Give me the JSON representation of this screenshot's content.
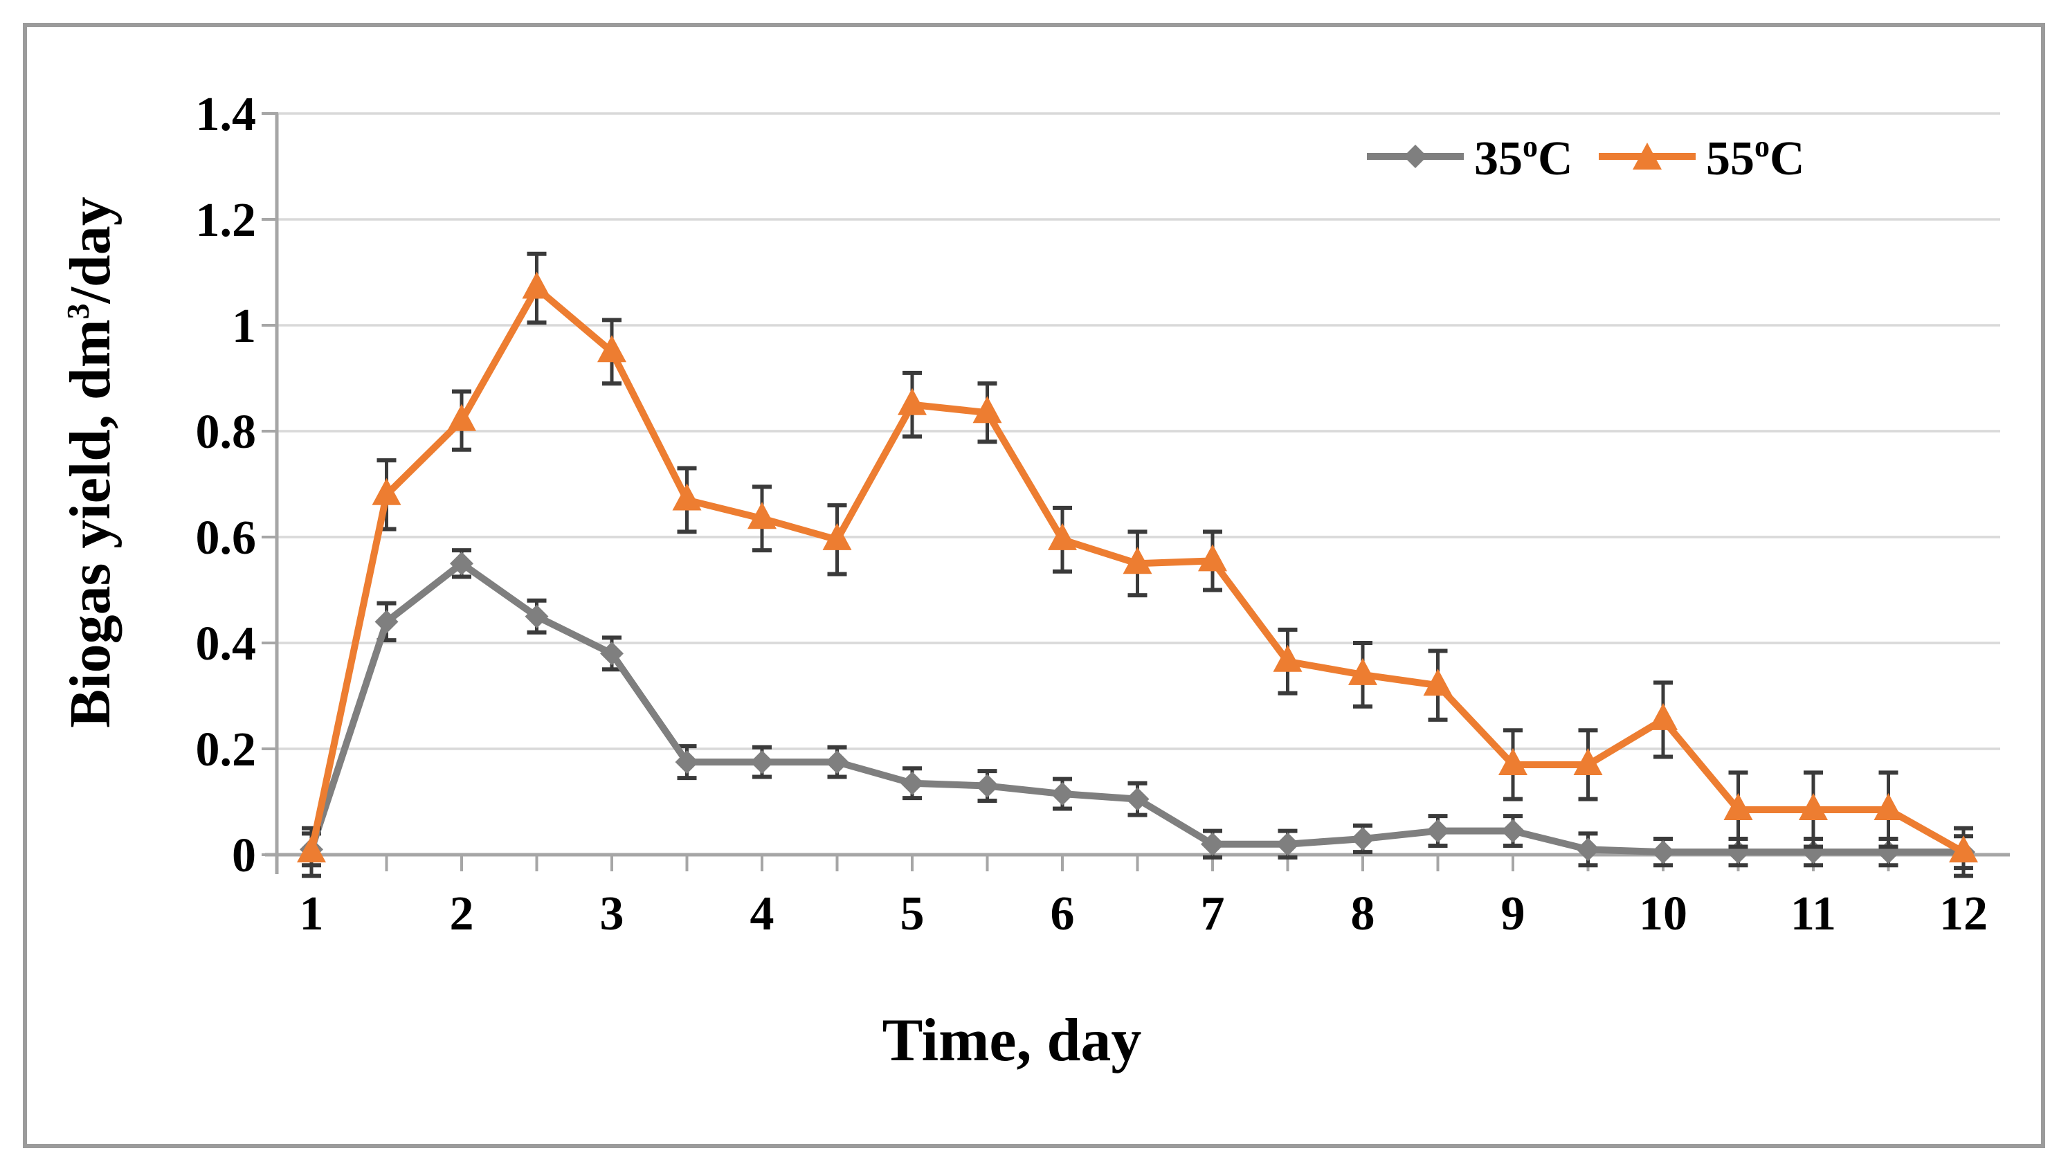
{
  "figure": {
    "border_color": "#9b9b9b",
    "background": "#ffffff"
  },
  "chart_data": {
    "type": "line",
    "title": "",
    "xlabel": "Time, day",
    "ylabel": {
      "pre": "Biogas yield, dm",
      "sup": "3",
      "post": "/day"
    },
    "ylim": [
      0,
      1.4
    ],
    "ytick_step": 0.2,
    "y_ticks": [
      "0",
      "0.2",
      "0.4",
      "0.6",
      "0.8",
      "1",
      "1.2",
      "1.4"
    ],
    "x_ticks": [
      "1",
      "2",
      "3",
      "4",
      "5",
      "6",
      "7",
      "8",
      "9",
      "10",
      "11",
      "12"
    ],
    "grid": true,
    "legend_position": "top-right",
    "gridline_color": "#d9d9d9",
    "axis_color": "#a6a6a6",
    "error_bar_color": "#3a3a3a",
    "text_color": "#000000",
    "x": [
      1,
      1.5,
      2,
      2.5,
      3,
      3.5,
      4,
      4.5,
      5,
      5.5,
      6,
      6.5,
      7,
      7.5,
      8,
      8.5,
      9,
      9.5,
      10,
      10.5,
      11,
      11.5,
      12
    ],
    "series": [
      {
        "name": "35C",
        "legend": {
          "num": "35",
          "sup": "o",
          "unit": "C"
        },
        "color": "#7f7f7f",
        "marker": "diamond",
        "values": [
          0.01,
          0.44,
          0.55,
          0.45,
          0.38,
          0.175,
          0.175,
          0.175,
          0.135,
          0.13,
          0.115,
          0.105,
          0.02,
          0.02,
          0.03,
          0.045,
          0.045,
          0.01,
          0.005,
          0.005,
          0.005,
          0.005,
          0.005
        ],
        "errors": [
          0.03,
          0.035,
          0.025,
          0.03,
          0.03,
          0.03,
          0.028,
          0.028,
          0.028,
          0.028,
          0.028,
          0.03,
          0.025,
          0.025,
          0.025,
          0.028,
          0.028,
          0.03,
          0.025,
          0.025,
          0.025,
          0.025,
          0.03
        ]
      },
      {
        "name": "55C",
        "legend": {
          "num": "55",
          "sup": "o",
          "unit": "C"
        },
        "color": "#ed7d31",
        "marker": "triangle",
        "values": [
          0.005,
          0.68,
          0.82,
          1.07,
          0.95,
          0.67,
          0.635,
          0.595,
          0.85,
          0.835,
          0.595,
          0.55,
          0.555,
          0.365,
          0.34,
          0.32,
          0.17,
          0.17,
          0.255,
          0.085,
          0.085,
          0.085,
          0.005
        ],
        "errors": [
          0.045,
          0.065,
          0.055,
          0.065,
          0.06,
          0.06,
          0.06,
          0.065,
          0.06,
          0.055,
          0.06,
          0.06,
          0.055,
          0.06,
          0.06,
          0.065,
          0.065,
          0.065,
          0.07,
          0.07,
          0.07,
          0.07,
          0.045
        ]
      }
    ]
  }
}
